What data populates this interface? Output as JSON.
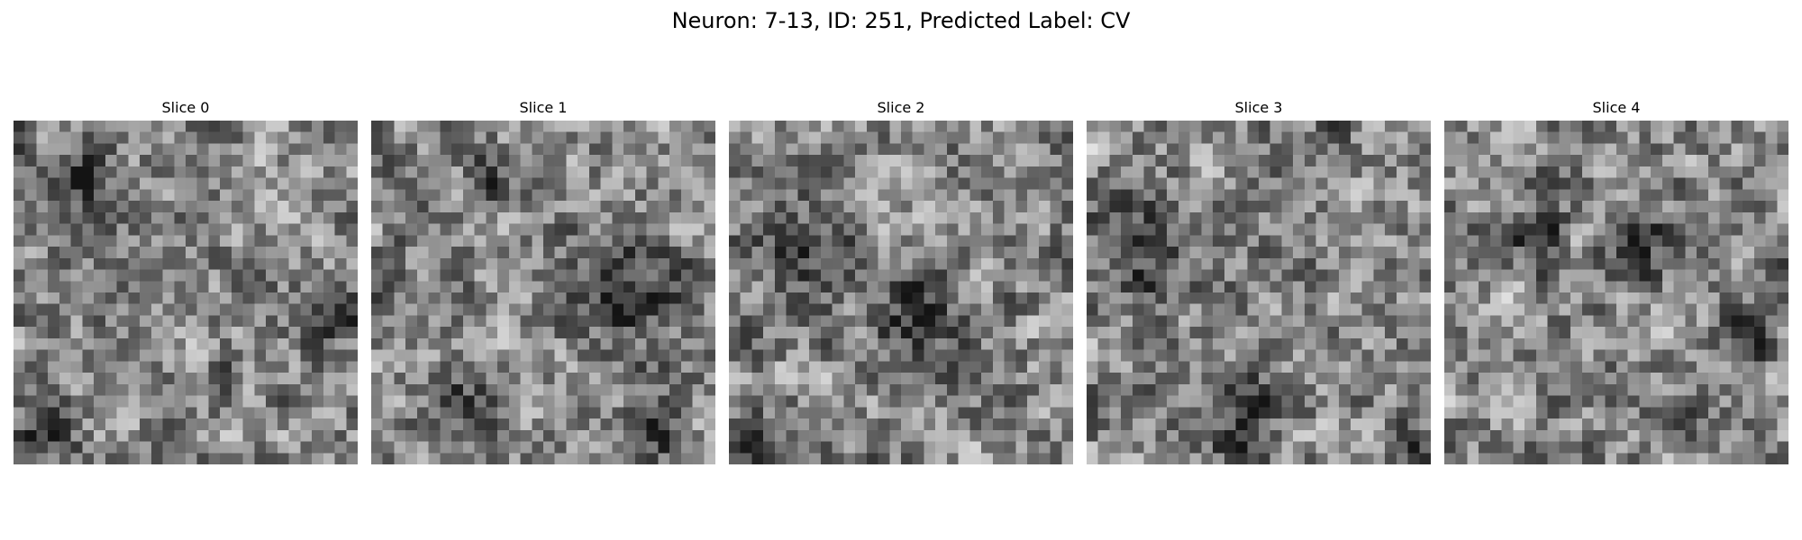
{
  "figure": {
    "title": "Neuron: 7-13, ID: 251, Predicted Label: CV"
  },
  "slices": [
    {
      "label": "Slice 0"
    },
    {
      "label": "Slice 1"
    },
    {
      "label": "Slice 2"
    },
    {
      "label": "Slice 3"
    },
    {
      "label": "Slice 4"
    }
  ],
  "image_style": {
    "colormap": "grayscale",
    "grid": "pixelated",
    "background": "#ffffff"
  }
}
